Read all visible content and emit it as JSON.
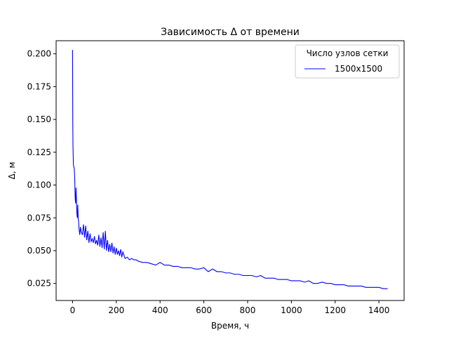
{
  "chart_data": {
    "type": "line",
    "title": "Зависимость Δ от времени",
    "xlabel": "Время, ч",
    "ylabel": "Δ, м",
    "xlim": [
      -75,
      1515
    ],
    "ylim": [
      0.012,
      0.21
    ],
    "xticks": [
      0,
      200,
      400,
      600,
      800,
      1000,
      1200,
      1400
    ],
    "yticks": [
      0.025,
      0.05,
      0.075,
      0.1,
      0.125,
      0.15,
      0.175,
      0.2
    ],
    "ytick_labels": [
      "0.025",
      "0.050",
      "0.075",
      "0.100",
      "0.125",
      "0.150",
      "0.175",
      "0.200"
    ],
    "grid": false,
    "legend": {
      "title": "Число узлов сетки",
      "placement": "top-right"
    },
    "series": [
      {
        "name": "1500x1500",
        "color": "#0000ff",
        "x": [
          0,
          1,
          2,
          4,
          6,
          8,
          10,
          12,
          14,
          16,
          18,
          20,
          22,
          24,
          26,
          28,
          30,
          33,
          36,
          40,
          45,
          50,
          55,
          60,
          65,
          70,
          75,
          80,
          85,
          90,
          95,
          100,
          105,
          110,
          115,
          120,
          125,
          130,
          135,
          140,
          145,
          150,
          155,
          160,
          165,
          170,
          175,
          180,
          185,
          190,
          195,
          200,
          205,
          210,
          215,
          220,
          225,
          230,
          240,
          250,
          260,
          270,
          280,
          290,
          300,
          320,
          340,
          360,
          380,
          400,
          420,
          440,
          460,
          480,
          500,
          520,
          540,
          560,
          580,
          600,
          620,
          640,
          660,
          680,
          700,
          720,
          740,
          760,
          780,
          800,
          820,
          840,
          860,
          880,
          900,
          920,
          940,
          960,
          980,
          1000,
          1020,
          1040,
          1060,
          1080,
          1100,
          1120,
          1140,
          1160,
          1180,
          1200,
          1220,
          1240,
          1260,
          1280,
          1300,
          1320,
          1340,
          1360,
          1380,
          1400,
          1420,
          1440
        ],
        "y": [
          0.203,
          0.15,
          0.13,
          0.115,
          0.114,
          0.112,
          0.105,
          0.09,
          0.086,
          0.098,
          0.088,
          0.078,
          0.075,
          0.085,
          0.074,
          0.072,
          0.066,
          0.062,
          0.068,
          0.064,
          0.062,
          0.07,
          0.06,
          0.069,
          0.058,
          0.065,
          0.056,
          0.063,
          0.057,
          0.059,
          0.056,
          0.061,
          0.055,
          0.058,
          0.054,
          0.062,
          0.053,
          0.06,
          0.052,
          0.064,
          0.051,
          0.065,
          0.05,
          0.058,
          0.049,
          0.055,
          0.049,
          0.056,
          0.048,
          0.053,
          0.047,
          0.052,
          0.047,
          0.05,
          0.046,
          0.051,
          0.045,
          0.049,
          0.044,
          0.045,
          0.043,
          0.044,
          0.043,
          0.043,
          0.042,
          0.041,
          0.041,
          0.04,
          0.039,
          0.041,
          0.039,
          0.039,
          0.038,
          0.038,
          0.037,
          0.037,
          0.037,
          0.036,
          0.036,
          0.037,
          0.034,
          0.036,
          0.034,
          0.034,
          0.033,
          0.033,
          0.032,
          0.032,
          0.031,
          0.031,
          0.031,
          0.03,
          0.031,
          0.029,
          0.029,
          0.029,
          0.028,
          0.028,
          0.028,
          0.027,
          0.027,
          0.027,
          0.026,
          0.027,
          0.025,
          0.025,
          0.026,
          0.025,
          0.025,
          0.024,
          0.024,
          0.024,
          0.023,
          0.023,
          0.023,
          0.023,
          0.022,
          0.022,
          0.022,
          0.022,
          0.021,
          0.021
        ]
      }
    ]
  }
}
